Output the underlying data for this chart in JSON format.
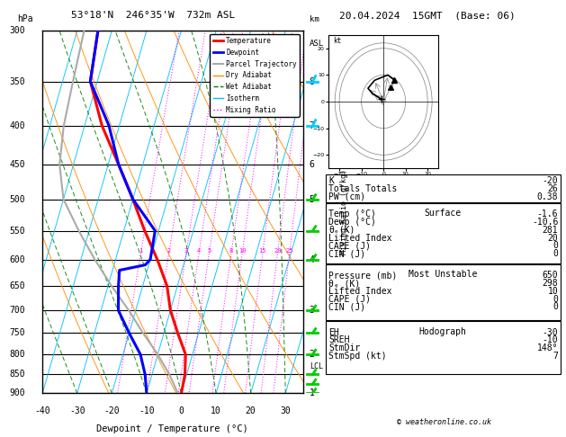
{
  "title_left": "53°18'N  246°35'W  732m ASL",
  "title_right": "20.04.2024  15GMT  (Base: 06)",
  "xlabel": "Dewpoint / Temperature (°C)",
  "pressure_levels": [
    300,
    350,
    400,
    450,
    500,
    550,
    600,
    650,
    700,
    750,
    800,
    850,
    900
  ],
  "T_min": -40,
  "T_max": 35,
  "P_min": 300,
  "P_max": 900,
  "skew_factor": 30,
  "temperature_data": {
    "pressure": [
      900,
      850,
      800,
      750,
      700,
      650,
      600,
      550,
      500,
      450,
      400,
      350,
      300
    ],
    "temp": [
      0,
      -0.5,
      -2,
      -6,
      -10,
      -13,
      -18,
      -24,
      -30,
      -37,
      -45,
      -52,
      -54
    ]
  },
  "dewpoint_data": {
    "pressure": [
      900,
      850,
      800,
      750,
      700,
      650,
      620,
      610,
      600,
      550,
      500,
      450,
      400,
      350,
      300
    ],
    "temp": [
      -10,
      -12,
      -15,
      -20,
      -25,
      -27,
      -28,
      -21,
      -20,
      -21,
      -30,
      -37,
      -43,
      -52,
      -54
    ]
  },
  "parcel_data": {
    "pressure": [
      900,
      850,
      800,
      750,
      700,
      650,
      600,
      550,
      500,
      450,
      400,
      350,
      300
    ],
    "temp": [
      -1,
      -5,
      -10,
      -16,
      -22,
      -29,
      -36,
      -43,
      -50,
      -54,
      -56,
      -57,
      -58
    ]
  },
  "lcl_pressure": 830,
  "km_labels": {
    "8": 350,
    "7": 400,
    "6": 450,
    "5": 500,
    "4": 600,
    "3": 700,
    "2": 800,
    "1": 900
  },
  "mr_values": [
    1,
    2,
    3,
    4,
    5,
    8,
    10,
    15,
    20,
    25
  ],
  "dry_adiabat_thetas": [
    200,
    220,
    240,
    260,
    280,
    300,
    320,
    340,
    360,
    380,
    400,
    420,
    440,
    460,
    480
  ],
  "moist_adiabat_starts": [
    -40,
    -30,
    -20,
    -10,
    0,
    10,
    20,
    30
  ],
  "isotherm_temps": [
    -60,
    -50,
    -40,
    -30,
    -20,
    -10,
    0,
    10,
    20,
    30,
    40,
    50
  ],
  "colors": {
    "temperature": "#ff0000",
    "dewpoint": "#0000ff",
    "parcel": "#aaaaaa",
    "dry_adiabat": "#ff8c00",
    "wet_adiabat": "#008000",
    "isotherm": "#00bfff",
    "mixing_ratio": "#ff00ff",
    "wind_cyan": "#00ccff",
    "wind_green": "#00cc00"
  },
  "lw_temp": 2.2,
  "lw_dew": 2.2,
  "lw_parcel": 1.5,
  "lw_bg": 0.7,
  "wind_barbs_cyan": [
    350,
    400
  ],
  "wind_barbs_green": [
    500,
    550,
    600,
    700,
    750,
    800,
    850,
    875,
    900
  ],
  "hodo_trace_u": [
    -1,
    -3,
    -5,
    -7,
    -4,
    2,
    5
  ],
  "hodo_trace_v": [
    1,
    2,
    3,
    5,
    8,
    10,
    8
  ],
  "hodo_storm_u": 3,
  "hodo_storm_v": 5,
  "info_K": "-20",
  "info_TT": "26",
  "info_PW": "0.38",
  "surface_temp": "-1.6",
  "surface_dewp": "-10.6",
  "surface_theta_e": "281",
  "surface_li": "20",
  "surface_cape": "0",
  "surface_cin": "0",
  "mu_pressure": "650",
  "mu_theta_e": "298",
  "mu_li": "10",
  "mu_cape": "0",
  "mu_cin": "0",
  "hodo_eh": "-30",
  "hodo_sreh": "-10",
  "hodo_stmdir": "148°",
  "hodo_stmspd": "7"
}
